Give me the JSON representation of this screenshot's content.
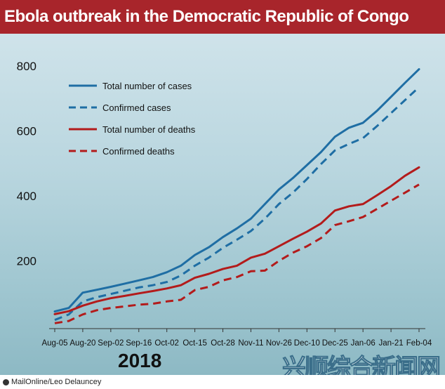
{
  "title": "Ebola outbreak in the Democratic Republic of Congo",
  "year_label": "2018",
  "credit": "MailOnline/Leo Delauncey",
  "watermark": "兴顺综合新闻网",
  "colors": {
    "title_bg": "#a8252b",
    "cases": "#1f6ea4",
    "deaths": "#b31b1b"
  },
  "chart_data": {
    "type": "line",
    "title": "Ebola outbreak in the Democratic Republic of Congo",
    "xlabel": "",
    "ylabel": "",
    "ylim": [
      0,
      800
    ],
    "yticks": [
      200,
      400,
      600,
      800
    ],
    "grid": false,
    "legend_position": "top-left",
    "x": [
      "Aug-05",
      "Aug-12",
      "Aug-20",
      "Aug-27",
      "Sep-02",
      "Sep-09",
      "Sep-16",
      "Sep-23",
      "Oct-02",
      "Oct-09",
      "Oct-15",
      "Oct-21",
      "Oct-28",
      "Nov-04",
      "Nov-11",
      "Nov-18",
      "Nov-26",
      "Dec-03",
      "Dec-10",
      "Dec-17",
      "Dec-25",
      "Dec-31",
      "Jan-06",
      "Jan-13",
      "Jan-21",
      "Jan-28",
      "Feb-04"
    ],
    "xtick_labels": [
      "Aug-05",
      "Aug-20",
      "Sep-02",
      "Sep-16",
      "Oct-02",
      "Oct-15",
      "Oct-28",
      "Nov-11",
      "Nov-26",
      "Dec-10",
      "Dec-25",
      "Jan-06",
      "Jan-21",
      "Feb-04"
    ],
    "series": [
      {
        "name": "Total number of cases",
        "style": "solid",
        "color": "#1f6ea4",
        "values": [
          44,
          55,
          102,
          111,
          120,
          130,
          140,
          150,
          165,
          185,
          218,
          242,
          273,
          300,
          330,
          375,
          420,
          455,
          495,
          535,
          582,
          610,
          625,
          662,
          705,
          748,
          790
        ]
      },
      {
        "name": "Confirmed cases",
        "style": "dashed",
        "color": "#1f6ea4",
        "values": [
          18,
          35,
          75,
          88,
          98,
          108,
          118,
          125,
          135,
          155,
          185,
          210,
          240,
          265,
          292,
          330,
          375,
          410,
          452,
          498,
          540,
          560,
          578,
          615,
          655,
          695,
          735
        ]
      },
      {
        "name": "Total number of deaths",
        "style": "solid",
        "color": "#b31b1b",
        "values": [
          36,
          45,
          62,
          75,
          85,
          92,
          100,
          107,
          115,
          125,
          148,
          160,
          175,
          185,
          210,
          222,
          245,
          268,
          290,
          315,
          355,
          368,
          375,
          402,
          430,
          462,
          488
        ]
      },
      {
        "name": "Confirmed deaths",
        "style": "dashed",
        "color": "#b31b1b",
        "values": [
          8,
          15,
          35,
          48,
          55,
          60,
          65,
          68,
          75,
          80,
          110,
          120,
          140,
          150,
          168,
          170,
          200,
          225,
          245,
          270,
          310,
          322,
          335,
          360,
          385,
          410,
          435
        ]
      }
    ]
  }
}
